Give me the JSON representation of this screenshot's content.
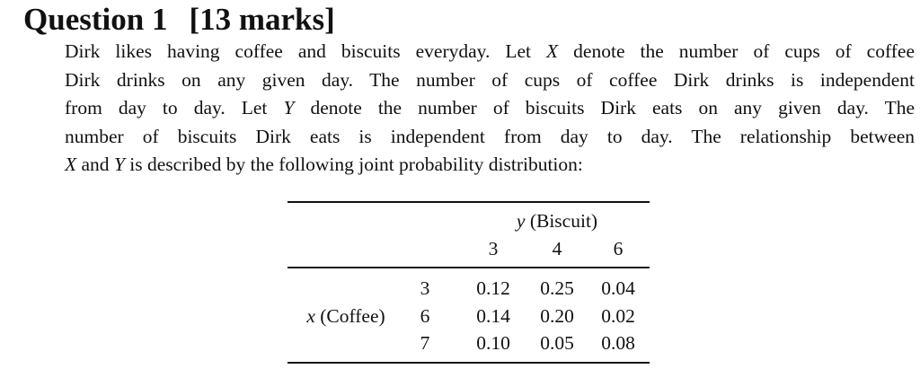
{
  "heading": {
    "title": "Question 1",
    "marks": "[13 marks]"
  },
  "paragraph": {
    "lines": [
      [
        {
          "text": "Dirk likes having coffee and biscuits everyday. Let "
        },
        {
          "text": "X",
          "italic": true
        },
        {
          "text": " denote the number of cups of coffee"
        }
      ],
      [
        {
          "text": "Dirk drinks on any given day. The number of cups of coffee Dirk drinks is independent"
        }
      ],
      [
        {
          "text": "from day to day. Let "
        },
        {
          "text": "Y",
          "italic": true
        },
        {
          "text": " denote the number of biscuits Dirk eats on any given day. The"
        }
      ],
      [
        {
          "text": "number of biscuits Dirk eats is independent from day to day. The relationship between"
        }
      ],
      [
        {
          "text": "X",
          "italic": true
        },
        {
          "text": " and "
        },
        {
          "text": "Y",
          "italic": true
        },
        {
          "text": " is described by the following joint probability distribution:"
        }
      ]
    ]
  },
  "table": {
    "column_header": {
      "var": "y",
      "text": " (Biscuit)"
    },
    "row_header": {
      "var": "x",
      "text": " (Coffee)"
    },
    "columns": [
      "3",
      "4",
      "6"
    ],
    "rows": [
      {
        "label": "3",
        "cells": [
          "0.12",
          "0.25",
          "0.04"
        ]
      },
      {
        "label": "6",
        "cells": [
          "0.14",
          "0.20",
          "0.02"
        ]
      },
      {
        "label": "7",
        "cells": [
          "0.10",
          "0.05",
          "0.08"
        ]
      }
    ]
  }
}
